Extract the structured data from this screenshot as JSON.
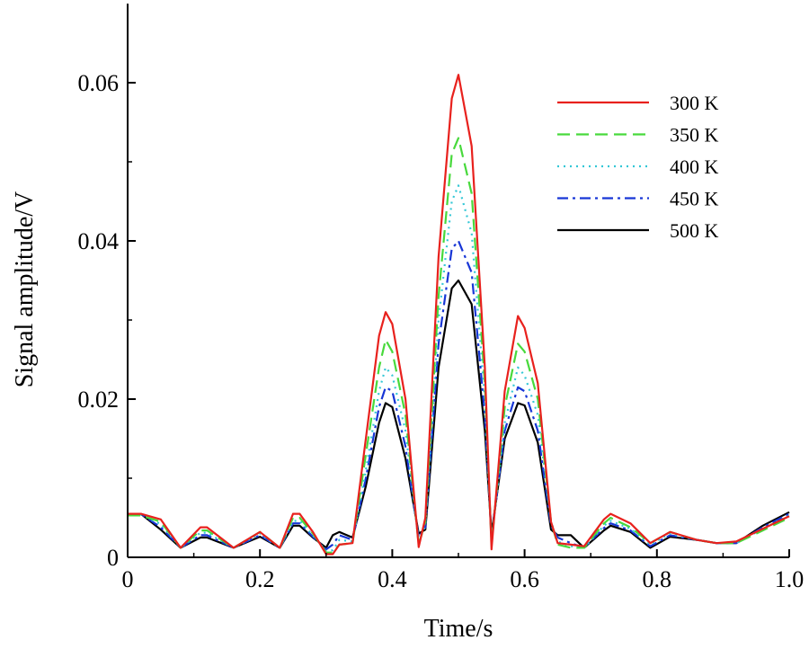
{
  "chart_data": {
    "type": "line",
    "title": "",
    "xlabel": "Time/s",
    "ylabel": "Signal amplitude/V",
    "xlim": [
      0,
      1.0
    ],
    "ylim": [
      0,
      0.07
    ],
    "x_ticks": [
      0,
      0.2,
      0.4,
      0.6,
      0.8,
      1.0
    ],
    "x_tick_labels": [
      "0",
      "0.2",
      "0.4",
      "0.6",
      "0.8",
      "1.0"
    ],
    "y_ticks": [
      0,
      0.02,
      0.04,
      0.06
    ],
    "y_tick_labels": [
      "0",
      "0.02",
      "0.04",
      "0.06"
    ],
    "grid": false,
    "legend_position": "top-right",
    "series": [
      {
        "name": "300 K",
        "color": "#e8211d",
        "dash": "solid",
        "x": [
          0,
          0.02,
          0.05,
          0.08,
          0.11,
          0.12,
          0.16,
          0.2,
          0.23,
          0.25,
          0.26,
          0.28,
          0.3,
          0.31,
          0.32,
          0.34,
          0.36,
          0.38,
          0.39,
          0.4,
          0.42,
          0.44,
          0.45,
          0.47,
          0.49,
          0.5,
          0.52,
          0.54,
          0.55,
          0.57,
          0.59,
          0.6,
          0.62,
          0.64,
          0.65,
          0.67,
          0.69,
          0.72,
          0.73,
          0.76,
          0.79,
          0.82,
          0.86,
          0.89,
          0.92,
          0.96,
          1.0
        ],
        "y": [
          0.0055,
          0.0055,
          0.0048,
          0.0012,
          0.0038,
          0.0038,
          0.0012,
          0.0032,
          0.0012,
          0.0055,
          0.0055,
          0.0032,
          0.0004,
          0.0004,
          0.0016,
          0.0018,
          0.015,
          0.028,
          0.031,
          0.0295,
          0.02,
          0.0013,
          0.005,
          0.038,
          0.058,
          0.061,
          0.052,
          0.024,
          0.001,
          0.021,
          0.0305,
          0.029,
          0.022,
          0.0045,
          0.0018,
          0.0016,
          0.0014,
          0.0048,
          0.0055,
          0.0043,
          0.0018,
          0.0032,
          0.0022,
          0.0018,
          0.002,
          0.0036,
          0.0052
        ]
      },
      {
        "name": "350 K",
        "color": "#48d93c",
        "dash": "dashed",
        "x": [
          0,
          0.02,
          0.05,
          0.08,
          0.11,
          0.12,
          0.16,
          0.2,
          0.23,
          0.25,
          0.26,
          0.28,
          0.3,
          0.31,
          0.32,
          0.34,
          0.36,
          0.38,
          0.39,
          0.4,
          0.42,
          0.44,
          0.45,
          0.47,
          0.49,
          0.5,
          0.52,
          0.54,
          0.55,
          0.57,
          0.59,
          0.6,
          0.62,
          0.64,
          0.65,
          0.67,
          0.69,
          0.72,
          0.73,
          0.76,
          0.79,
          0.82,
          0.86,
          0.89,
          0.92,
          0.96,
          1.0
        ],
        "y": [
          0.0053,
          0.0053,
          0.0045,
          0.0012,
          0.0034,
          0.0034,
          0.0012,
          0.0032,
          0.0012,
          0.005,
          0.005,
          0.003,
          0.0006,
          0.0006,
          0.0016,
          0.0018,
          0.013,
          0.024,
          0.0275,
          0.026,
          0.018,
          0.0016,
          0.0045,
          0.033,
          0.051,
          0.053,
          0.046,
          0.022,
          0.0016,
          0.019,
          0.027,
          0.026,
          0.02,
          0.0045,
          0.0016,
          0.0012,
          0.0012,
          0.0043,
          0.005,
          0.0038,
          0.0018,
          0.0032,
          0.0022,
          0.0018,
          0.0018,
          0.0034,
          0.005
        ]
      },
      {
        "name": "400 K",
        "color": "#33c7d6",
        "dash": "dotted",
        "x": [
          0,
          0.02,
          0.05,
          0.08,
          0.11,
          0.12,
          0.16,
          0.2,
          0.23,
          0.25,
          0.26,
          0.28,
          0.3,
          0.31,
          0.32,
          0.34,
          0.36,
          0.38,
          0.39,
          0.4,
          0.42,
          0.44,
          0.45,
          0.47,
          0.49,
          0.5,
          0.52,
          0.54,
          0.55,
          0.57,
          0.59,
          0.6,
          0.62,
          0.64,
          0.65,
          0.67,
          0.69,
          0.72,
          0.73,
          0.76,
          0.79,
          0.82,
          0.86,
          0.89,
          0.92,
          0.96,
          1.0
        ],
        "y": [
          0.0054,
          0.0054,
          0.0042,
          0.0012,
          0.0031,
          0.0031,
          0.0012,
          0.003,
          0.0012,
          0.0046,
          0.0046,
          0.0028,
          0.0008,
          0.0009,
          0.0022,
          0.002,
          0.011,
          0.021,
          0.024,
          0.023,
          0.016,
          0.002,
          0.004,
          0.03,
          0.045,
          0.047,
          0.041,
          0.02,
          0.002,
          0.017,
          0.024,
          0.023,
          0.018,
          0.0045,
          0.002,
          0.0014,
          0.0012,
          0.004,
          0.0046,
          0.0036,
          0.0016,
          0.003,
          0.0022,
          0.0018,
          0.0018,
          0.0036,
          0.0053
        ]
      },
      {
        "name": "450 K",
        "color": "#1836d6",
        "dash": "dash-dot",
        "x": [
          0,
          0.02,
          0.05,
          0.08,
          0.11,
          0.12,
          0.16,
          0.2,
          0.23,
          0.25,
          0.26,
          0.28,
          0.3,
          0.31,
          0.32,
          0.34,
          0.36,
          0.38,
          0.39,
          0.4,
          0.42,
          0.44,
          0.45,
          0.47,
          0.49,
          0.5,
          0.52,
          0.54,
          0.55,
          0.57,
          0.59,
          0.6,
          0.62,
          0.64,
          0.65,
          0.67,
          0.69,
          0.72,
          0.73,
          0.76,
          0.79,
          0.82,
          0.86,
          0.89,
          0.92,
          0.96,
          1.0
        ],
        "y": [
          0.0055,
          0.0055,
          0.0038,
          0.0012,
          0.0028,
          0.0028,
          0.0012,
          0.0028,
          0.0012,
          0.0043,
          0.0043,
          0.0026,
          0.001,
          0.0016,
          0.0028,
          0.0022,
          0.01,
          0.019,
          0.0215,
          0.021,
          0.014,
          0.0025,
          0.0038,
          0.027,
          0.039,
          0.04,
          0.036,
          0.018,
          0.0025,
          0.016,
          0.0215,
          0.021,
          0.016,
          0.004,
          0.0025,
          0.0018,
          0.0012,
          0.0037,
          0.0043,
          0.0034,
          0.0014,
          0.0028,
          0.0022,
          0.0018,
          0.0018,
          0.0038,
          0.0055
        ]
      },
      {
        "name": "500 K",
        "color": "#000000",
        "dash": "solid",
        "x": [
          0,
          0.02,
          0.05,
          0.08,
          0.11,
          0.12,
          0.16,
          0.2,
          0.23,
          0.25,
          0.26,
          0.28,
          0.3,
          0.31,
          0.32,
          0.34,
          0.36,
          0.38,
          0.39,
          0.4,
          0.42,
          0.44,
          0.45,
          0.47,
          0.49,
          0.5,
          0.52,
          0.54,
          0.55,
          0.57,
          0.59,
          0.6,
          0.62,
          0.64,
          0.65,
          0.67,
          0.69,
          0.72,
          0.73,
          0.76,
          0.79,
          0.82,
          0.86,
          0.89,
          0.92,
          0.96,
          1.0
        ],
        "y": [
          0.0055,
          0.0055,
          0.0035,
          0.0012,
          0.0025,
          0.0025,
          0.0012,
          0.0026,
          0.0012,
          0.004,
          0.004,
          0.0025,
          0.0012,
          0.0028,
          0.0032,
          0.0025,
          0.009,
          0.017,
          0.0195,
          0.019,
          0.0125,
          0.003,
          0.0035,
          0.024,
          0.034,
          0.035,
          0.032,
          0.016,
          0.003,
          0.015,
          0.0195,
          0.0192,
          0.0145,
          0.0035,
          0.0028,
          0.0028,
          0.0012,
          0.0034,
          0.004,
          0.0032,
          0.0012,
          0.0026,
          0.0022,
          0.0018,
          0.0018,
          0.004,
          0.0057
        ]
      }
    ]
  }
}
